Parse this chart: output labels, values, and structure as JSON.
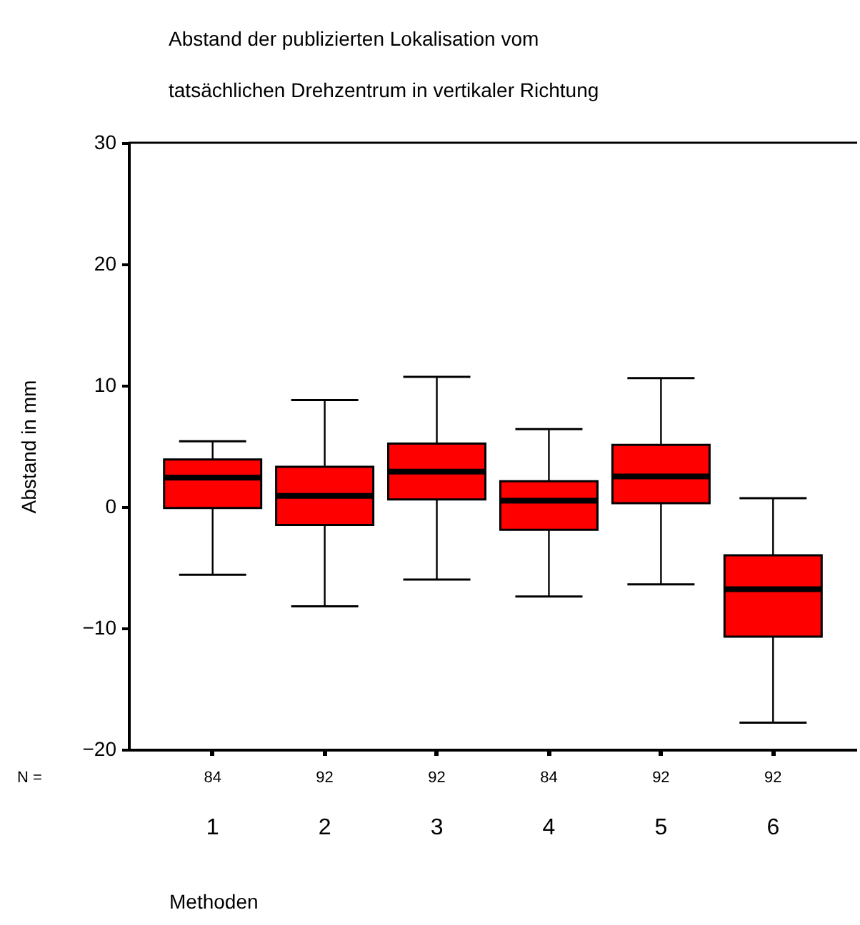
{
  "chart_data": {
    "type": "box",
    "title": "Abstand der publizierten Lokalisation vom tatsächlichen Drehzentrum in vertikaler Richtung",
    "xlabel": "Methoden",
    "ylabel": "Abstand in mm",
    "categories": [
      "1",
      "2",
      "3",
      "4",
      "5",
      "6"
    ],
    "series": [
      {
        "color": "#ff0000",
        "boxes": [
          {
            "low": -5.6,
            "q1": -0.1,
            "median": 2.4,
            "q3": 3.9,
            "high": 5.4
          },
          {
            "low": -8.2,
            "q1": -1.5,
            "median": 0.9,
            "q3": 3.3,
            "high": 8.8
          },
          {
            "low": -6.0,
            "q1": 0.6,
            "median": 2.9,
            "q3": 5.2,
            "high": 10.7
          },
          {
            "low": -7.4,
            "q1": -1.9,
            "median": 0.5,
            "q3": 2.1,
            "high": 6.4
          },
          {
            "low": -6.4,
            "q1": 0.3,
            "median": 2.5,
            "q3": 5.1,
            "high": 10.6
          },
          {
            "low": -17.8,
            "q1": -10.7,
            "median": -6.8,
            "q3": -4.0,
            "high": 0.7
          }
        ]
      }
    ],
    "ylim": [
      -20,
      30
    ],
    "yticks": [
      -20,
      -10,
      0,
      10,
      20,
      30
    ],
    "grid": false,
    "annotations": [
      "N =",
      {
        "text": "84",
        "x": "1"
      },
      {
        "text": "92",
        "x": "2"
      },
      {
        "text": "92",
        "x": "3"
      },
      {
        "text": "84",
        "x": "4"
      },
      {
        "text": "92",
        "x": "5"
      },
      {
        "text": "92",
        "x": "6"
      }
    ]
  }
}
